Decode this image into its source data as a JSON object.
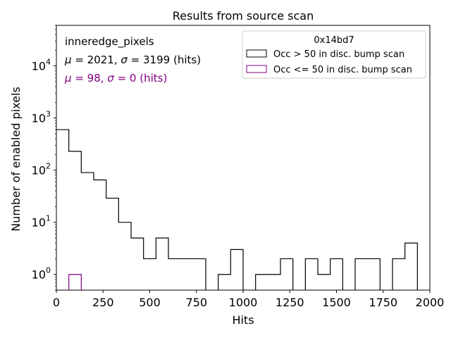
{
  "chart_data": {
    "type": "histogram",
    "title": "Results from source scan",
    "xlabel": "Hits",
    "ylabel": "Number of enabled pixels",
    "xlim": [
      0,
      2000
    ],
    "ylim": [
      0.5,
      60000
    ],
    "yscale": "log",
    "xticks": [
      {
        "value": 0,
        "label": "0"
      },
      {
        "value": 250,
        "label": "250"
      },
      {
        "value": 500,
        "label": "500"
      },
      {
        "value": 750,
        "label": "750"
      },
      {
        "value": 1000,
        "label": "1000"
      },
      {
        "value": 1250,
        "label": "1250"
      },
      {
        "value": 1500,
        "label": "1500"
      },
      {
        "value": 1750,
        "label": "1750"
      },
      {
        "value": 2000,
        "label": "2000"
      }
    ],
    "yticks": [
      {
        "value": 1,
        "base": "10",
        "exp": "0"
      },
      {
        "value": 10,
        "base": "10",
        "exp": "1"
      },
      {
        "value": 100,
        "base": "10",
        "exp": "2"
      },
      {
        "value": 1000,
        "base": "10",
        "exp": "3"
      },
      {
        "value": 10000,
        "base": "10",
        "exp": "4"
      }
    ],
    "legend": {
      "title": "0x14bd7",
      "location": "upper right"
    },
    "annotations": {
      "name": "inneredge_pixels",
      "series1_stats": {
        "mu": "2021",
        "sigma": "3199",
        "unit": "(hits)",
        "color": "#000000"
      },
      "series2_stats": {
        "mu": "98",
        "sigma": "0",
        "unit": "(hits)",
        "color": "#800080"
      }
    },
    "bin_edges": [
      0,
      66.7,
      133.3,
      200,
      266.7,
      333.3,
      400,
      466.7,
      533.3,
      600,
      666.7,
      733.3,
      800,
      866.7,
      933.3,
      1000,
      1066.7,
      1133.3,
      1200,
      1266.7,
      1333.3,
      1400,
      1466.7,
      1533.3,
      1600,
      1666.7,
      1733.3,
      1800,
      1866.7,
      1933.3
    ],
    "series": [
      {
        "name": "Occ > 50 in disc. bump scan",
        "color": "#000000",
        "counts": [
          600,
          230,
          90,
          65,
          29,
          10,
          5,
          2,
          5,
          2,
          2,
          2,
          0,
          1,
          3,
          0,
          1,
          1,
          2,
          0,
          2,
          1,
          2,
          0,
          2,
          2,
          0,
          2,
          4
        ]
      },
      {
        "name": "Occ <= 50 in disc. bump scan",
        "color": "#800080",
        "counts": [
          0,
          1,
          0,
          0,
          0,
          0,
          0,
          0,
          0,
          0,
          0,
          0,
          0,
          0,
          0,
          0,
          0,
          0,
          0,
          0,
          0,
          0,
          0,
          0,
          0,
          0,
          0,
          0,
          0
        ]
      }
    ]
  }
}
